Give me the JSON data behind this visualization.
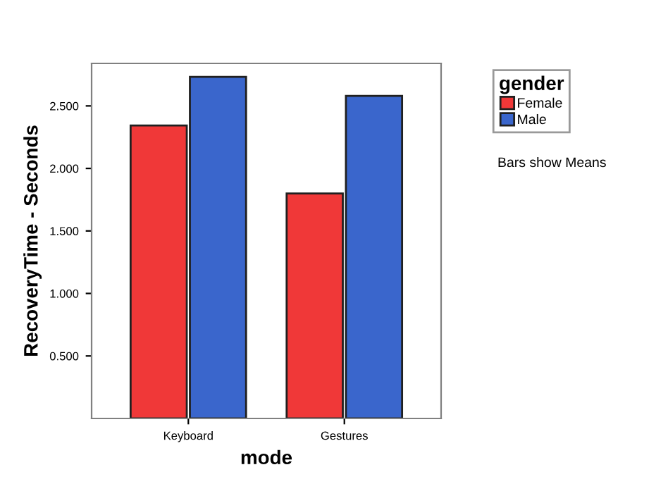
{
  "chart_data": {
    "type": "bar",
    "xlabel": "mode",
    "ylabel": "RecoveryTime - Seconds",
    "legend_title": "gender",
    "categories": [
      "Keyboard",
      "Gestures"
    ],
    "series": [
      {
        "name": "Female",
        "color": "#f03838",
        "values": [
          2.344,
          1.8
        ]
      },
      {
        "name": "Male",
        "color": "#3a66cc",
        "values": [
          2.732,
          2.58
        ]
      }
    ],
    "ylim": [
      0,
      2.84
    ],
    "yticks": [
      {
        "value": 0.5,
        "label": "0.500"
      },
      {
        "value": 1.0,
        "label": "1.000"
      },
      {
        "value": 1.5,
        "label": "1.500"
      },
      {
        "value": 2.0,
        "label": "2.000"
      },
      {
        "value": 2.5,
        "label": "2.500"
      }
    ],
    "grid": false,
    "legend": "right",
    "annotations": [
      "Bars show Means"
    ]
  }
}
